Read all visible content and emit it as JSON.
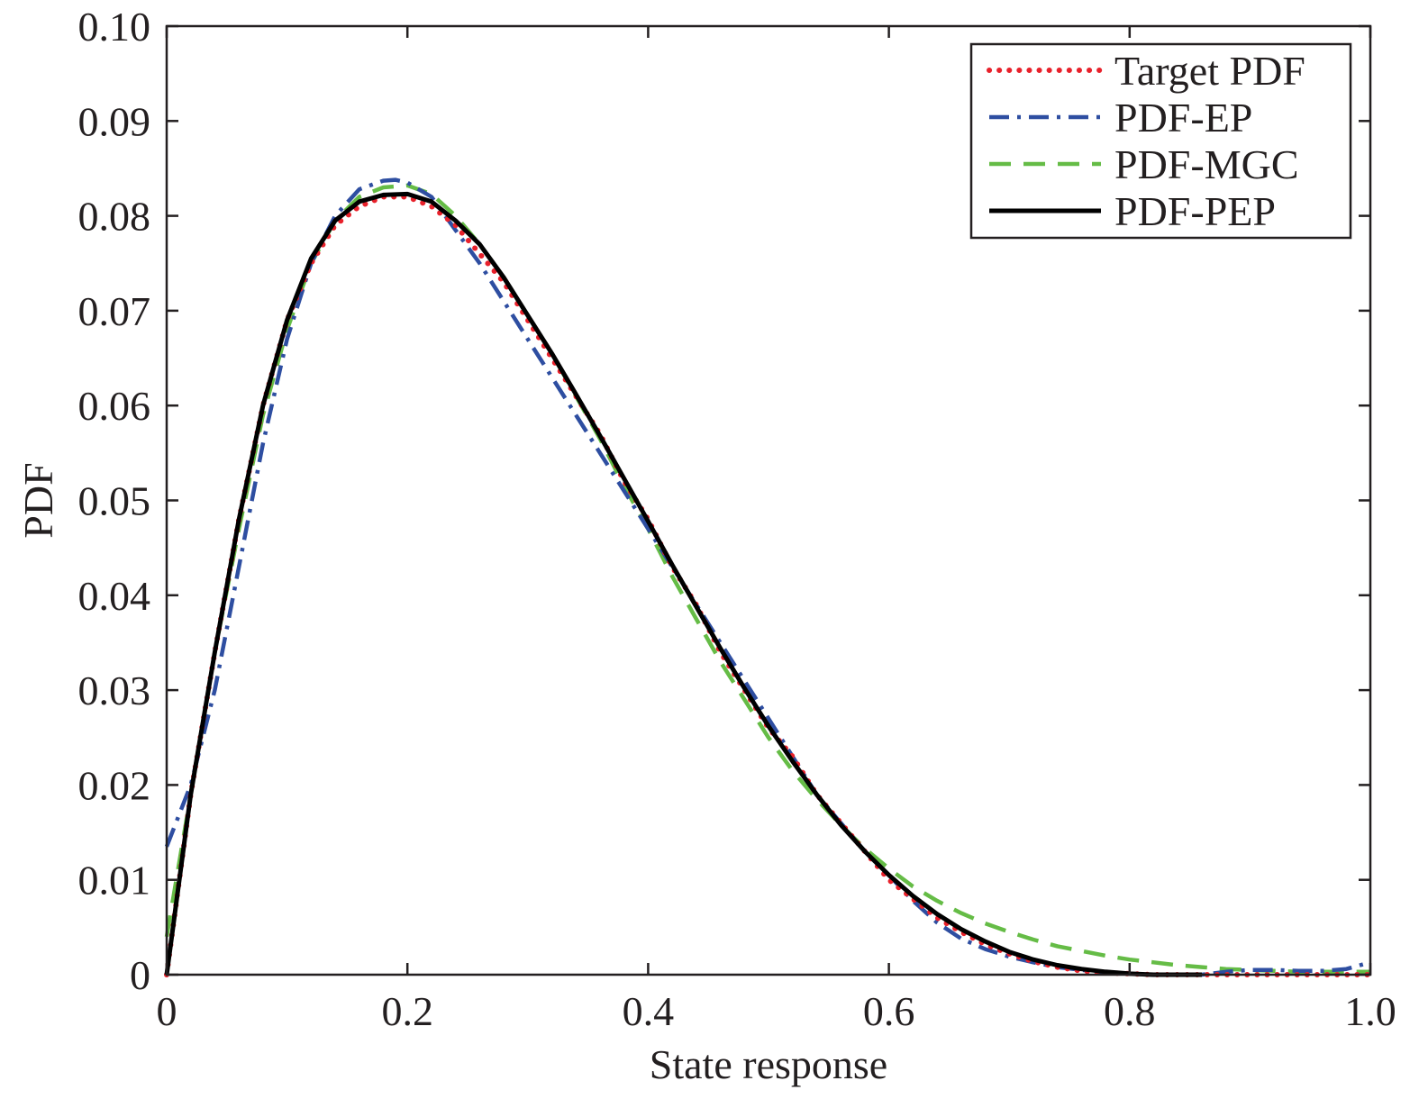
{
  "chart_data": {
    "type": "line",
    "title": "",
    "xlabel": "State response",
    "ylabel": "PDF",
    "xlim": [
      0,
      1.0
    ],
    "ylim": [
      0,
      0.1
    ],
    "xticks": [
      0,
      0.2,
      0.4,
      0.6,
      0.8,
      1.0
    ],
    "xtick_labels": [
      "0",
      "0.2",
      "0.4",
      "0.6",
      "0.8",
      "1.0"
    ],
    "yticks": [
      0,
      0.01,
      0.02,
      0.03,
      0.04,
      0.05,
      0.06,
      0.07,
      0.08,
      0.09,
      0.1
    ],
    "ytick_labels": [
      "0",
      "0.01",
      "0.02",
      "0.03",
      "0.04",
      "0.05",
      "0.06",
      "0.07",
      "0.08",
      "0.09",
      "0.10"
    ],
    "grid": false,
    "legend_position": "top-right",
    "series": [
      {
        "name": "Target PDF",
        "color": "#e8212b",
        "style": "dotted",
        "x": [
          0,
          0.02,
          0.04,
          0.06,
          0.08,
          0.1,
          0.12,
          0.14,
          0.16,
          0.18,
          0.2,
          0.22,
          0.24,
          0.26,
          0.28,
          0.3,
          0.32,
          0.34,
          0.36,
          0.38,
          0.4,
          0.42,
          0.44,
          0.46,
          0.48,
          0.5,
          0.52,
          0.54,
          0.56,
          0.58,
          0.6,
          0.62,
          0.64,
          0.66,
          0.68,
          0.7,
          0.72,
          0.74,
          0.76,
          0.78,
          0.8,
          0.82,
          0.84,
          0.86,
          0.88,
          0.9,
          0.92,
          0.94,
          0.96,
          0.98,
          1.0
        ],
        "y": [
          0,
          0.019,
          0.034,
          0.048,
          0.06,
          0.069,
          0.075,
          0.079,
          0.081,
          0.082,
          0.082,
          0.081,
          0.079,
          0.076,
          0.073,
          0.069,
          0.065,
          0.061,
          0.057,
          0.052,
          0.048,
          0.043,
          0.039,
          0.034,
          0.03,
          0.026,
          0.023,
          0.019,
          0.016,
          0.013,
          0.01,
          0.008,
          0.006,
          0.0045,
          0.0032,
          0.0022,
          0.0014,
          0.0008,
          0.0004,
          0.0002,
          0.0001,
          0,
          0,
          0,
          0,
          0,
          0,
          0,
          0,
          0,
          0
        ]
      },
      {
        "name": "PDF-EP",
        "color": "#2e4ea1",
        "style": "dashdot",
        "x": [
          0,
          0.02,
          0.04,
          0.06,
          0.08,
          0.1,
          0.12,
          0.14,
          0.16,
          0.18,
          0.19,
          0.2,
          0.22,
          0.24,
          0.26,
          0.28,
          0.3,
          0.32,
          0.34,
          0.36,
          0.38,
          0.4,
          0.42,
          0.44,
          0.46,
          0.48,
          0.5,
          0.52,
          0.54,
          0.56,
          0.58,
          0.6,
          0.62,
          0.64,
          0.66,
          0.68,
          0.7,
          0.72,
          0.74,
          0.76,
          0.78,
          0.8,
          0.82,
          0.84,
          0.86,
          0.88,
          0.9,
          0.92,
          0.94,
          0.96,
          0.98,
          1.0
        ],
        "y": [
          0.0135,
          0.02,
          0.03,
          0.043,
          0.056,
          0.067,
          0.075,
          0.08,
          0.0828,
          0.0837,
          0.0838,
          0.0835,
          0.082,
          0.0785,
          0.075,
          0.071,
          0.067,
          0.063,
          0.059,
          0.055,
          0.051,
          0.047,
          0.043,
          0.039,
          0.035,
          0.031,
          0.027,
          0.023,
          0.019,
          0.016,
          0.013,
          0.0105,
          0.0078,
          0.0055,
          0.0038,
          0.0027,
          0.0019,
          0.0013,
          0.0008,
          0.0005,
          0.0002,
          0.0001,
          0,
          0,
          0,
          0.0003,
          0.0005,
          0.0005,
          0.0004,
          0.0004,
          0.0006,
          0.0013
        ]
      },
      {
        "name": "PDF-MGC",
        "color": "#65bc46",
        "style": "dashed",
        "x": [
          0,
          0.02,
          0.04,
          0.06,
          0.08,
          0.1,
          0.12,
          0.14,
          0.16,
          0.18,
          0.2,
          0.22,
          0.24,
          0.26,
          0.28,
          0.3,
          0.32,
          0.34,
          0.36,
          0.38,
          0.4,
          0.42,
          0.44,
          0.46,
          0.48,
          0.5,
          0.52,
          0.54,
          0.56,
          0.58,
          0.6,
          0.62,
          0.64,
          0.66,
          0.68,
          0.7,
          0.72,
          0.74,
          0.76,
          0.78,
          0.8,
          0.82,
          0.84,
          0.86,
          0.88,
          0.9,
          0.92,
          0.94,
          0.96,
          0.98,
          1.0
        ],
        "y": [
          0.004,
          0.019,
          0.034,
          0.047,
          0.059,
          0.068,
          0.075,
          0.0795,
          0.082,
          0.083,
          0.0832,
          0.0823,
          0.08,
          0.077,
          0.0735,
          0.0695,
          0.0655,
          0.061,
          0.0565,
          0.0515,
          0.047,
          0.042,
          0.0375,
          0.033,
          0.029,
          0.025,
          0.0215,
          0.0185,
          0.0158,
          0.0133,
          0.0112,
          0.0093,
          0.0078,
          0.0065,
          0.0054,
          0.0045,
          0.0037,
          0.003,
          0.0025,
          0.002,
          0.0016,
          0.0013,
          0.001,
          0.0008,
          0.0006,
          0.0005,
          0.0004,
          0.0003,
          0.0003,
          0.0003,
          0.0003
        ]
      },
      {
        "name": "PDF-PEP",
        "color": "#000000",
        "style": "solid",
        "x": [
          0,
          0.02,
          0.04,
          0.06,
          0.08,
          0.1,
          0.12,
          0.14,
          0.16,
          0.18,
          0.2,
          0.22,
          0.24,
          0.26,
          0.28,
          0.3,
          0.32,
          0.34,
          0.36,
          0.38,
          0.4,
          0.42,
          0.44,
          0.46,
          0.48,
          0.5,
          0.52,
          0.54,
          0.56,
          0.58,
          0.6,
          0.62,
          0.64,
          0.66,
          0.68,
          0.7,
          0.72,
          0.74,
          0.76,
          0.78,
          0.8,
          0.82,
          0.84,
          0.86
        ],
        "y": [
          0,
          0.019,
          0.034,
          0.048,
          0.06,
          0.069,
          0.0755,
          0.0795,
          0.0815,
          0.0822,
          0.0823,
          0.0815,
          0.0795,
          0.077,
          0.0735,
          0.0695,
          0.0655,
          0.0612,
          0.0568,
          0.0523,
          0.0478,
          0.0432,
          0.0388,
          0.0344,
          0.0302,
          0.0262,
          0.0225,
          0.019,
          0.0158,
          0.013,
          0.0105,
          0.0083,
          0.0064,
          0.0048,
          0.0035,
          0.0024,
          0.0016,
          0.001,
          0.0006,
          0.0003,
          0.0001,
          0,
          0,
          0
        ]
      }
    ]
  }
}
